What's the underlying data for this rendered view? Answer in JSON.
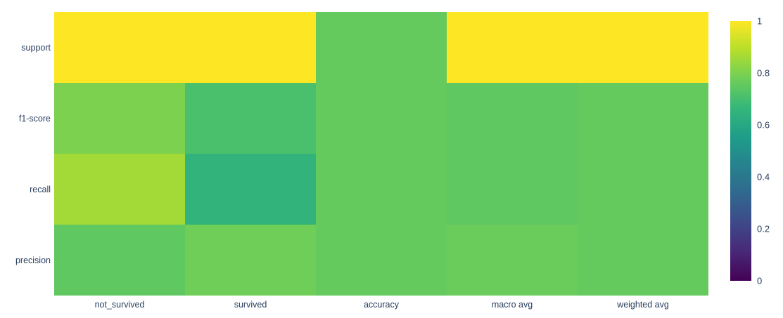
{
  "chart_data": {
    "type": "heatmap",
    "title": "",
    "xlabel": "",
    "ylabel": "",
    "x": [
      "not_survived",
      "survived",
      "accuracy",
      "macro avg",
      "weighted avg"
    ],
    "y": [
      "support",
      "f1-score",
      "recall",
      "precision"
    ],
    "z": [
      [
        1.0,
        1.0,
        0.76,
        1.0,
        1.0
      ],
      [
        0.8,
        0.71,
        0.76,
        0.75,
        0.76
      ],
      [
        0.86,
        0.65,
        0.76,
        0.75,
        0.76
      ],
      [
        0.75,
        0.78,
        0.76,
        0.77,
        0.76
      ]
    ],
    "zmin": 0,
    "zmax": 1,
    "grid": false,
    "legend_position": "right-colorbar",
    "colorscale": {
      "name": "Viridis",
      "stops": [
        [
          0.0,
          "#440154"
        ],
        [
          0.111111,
          "#482878"
        ],
        [
          0.222222,
          "#3e4989"
        ],
        [
          0.333333,
          "#31688e"
        ],
        [
          0.444444,
          "#26828e"
        ],
        [
          0.555556,
          "#1f9e89"
        ],
        [
          0.666667,
          "#35b779"
        ],
        [
          0.777778,
          "#6ece58"
        ],
        [
          0.888889,
          "#b5de2b"
        ],
        [
          1.0,
          "#fde725"
        ]
      ]
    },
    "colorbar": {
      "tick_values": [
        0,
        0.2,
        0.4,
        0.6,
        0.8,
        1
      ],
      "tick_labels": [
        "0",
        "0.2",
        "0.4",
        "0.6",
        "0.8",
        "1"
      ]
    },
    "colors": {
      "axis_text": "#2a3f5f",
      "background": "#ffffff"
    }
  }
}
